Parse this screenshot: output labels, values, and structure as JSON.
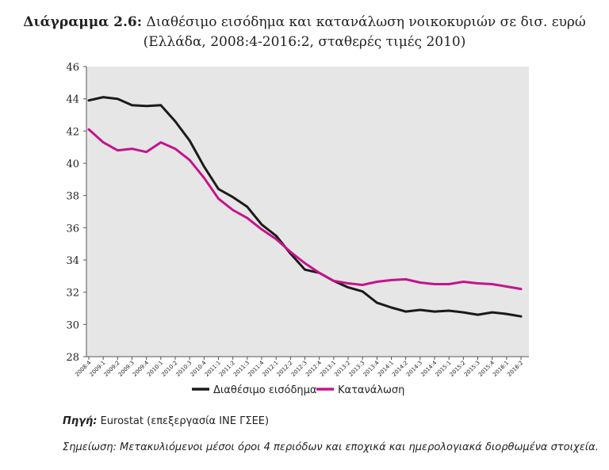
{
  "header": {
    "label": "Διάγραμμα 2.6:",
    "title": "Διαθέσιμο εισόδημα και κατανάλωση νοικοκυριών σε δισ. ευρώ",
    "subtitle": "(Ελλάδα, 2008:4-2016:2, σταθερές τιμές 2010)"
  },
  "footer": {
    "source_label": "Πηγή:",
    "source_text": "Eurostat (επεξεργασία ΙΝΕ ΓΣΕΕ)",
    "note": "Σημείωση: Μετακυλιόμενοι μέσοι όροι 4 περιόδων και εποχικά και ημερολογιακά διορθωμένα στοιχεία."
  },
  "chart_data": {
    "type": "line",
    "title": "Διαθέσιμο εισόδημα και κατανάλωση νοικοκυριών σε δισ. ευρώ",
    "xlabel": "",
    "ylabel": "",
    "ylim": [
      28,
      46
    ],
    "yticks": [
      28,
      30,
      32,
      34,
      36,
      38,
      40,
      42,
      44,
      46
    ],
    "grid": false,
    "legend_position": "bottom",
    "categories": [
      "2008:4",
      "2009:1",
      "2009:2",
      "2009:3",
      "2009:4",
      "2010:1",
      "2010:2",
      "2010:3",
      "2010:4",
      "2011:1",
      "2011:2",
      "2011:3",
      "2011:4",
      "2012:1",
      "2012:2",
      "2012:3",
      "2012:4",
      "2013:1",
      "2013:2",
      "2013:3",
      "2013:4",
      "2014:1",
      "2014:2",
      "2014:3",
      "2014:4",
      "2015:1",
      "2015:2",
      "2015:3",
      "2015:4",
      "2016:1",
      "2016:2"
    ],
    "series": [
      {
        "name": "Διαθέσιμο εισόδημα",
        "color": "#1a1a1a",
        "values": [
          43.9,
          44.1,
          44.0,
          43.6,
          43.55,
          43.6,
          42.6,
          41.4,
          39.8,
          38.4,
          37.9,
          37.3,
          36.2,
          35.5,
          34.4,
          33.4,
          33.2,
          32.7,
          32.3,
          32.05,
          31.35,
          31.05,
          30.8,
          30.9,
          30.8,
          30.85,
          30.75,
          30.6,
          30.75,
          30.65,
          30.5
        ]
      },
      {
        "name": "Κατανάλωση",
        "color": "#c4148c",
        "values": [
          42.1,
          41.3,
          40.8,
          40.9,
          40.7,
          41.3,
          40.9,
          40.2,
          39.1,
          37.8,
          37.1,
          36.6,
          35.9,
          35.3,
          34.5,
          33.8,
          33.2,
          32.7,
          32.55,
          32.45,
          32.65,
          32.75,
          32.8,
          32.6,
          32.5,
          32.5,
          32.65,
          32.55,
          32.5,
          32.35,
          32.2
        ]
      }
    ]
  }
}
